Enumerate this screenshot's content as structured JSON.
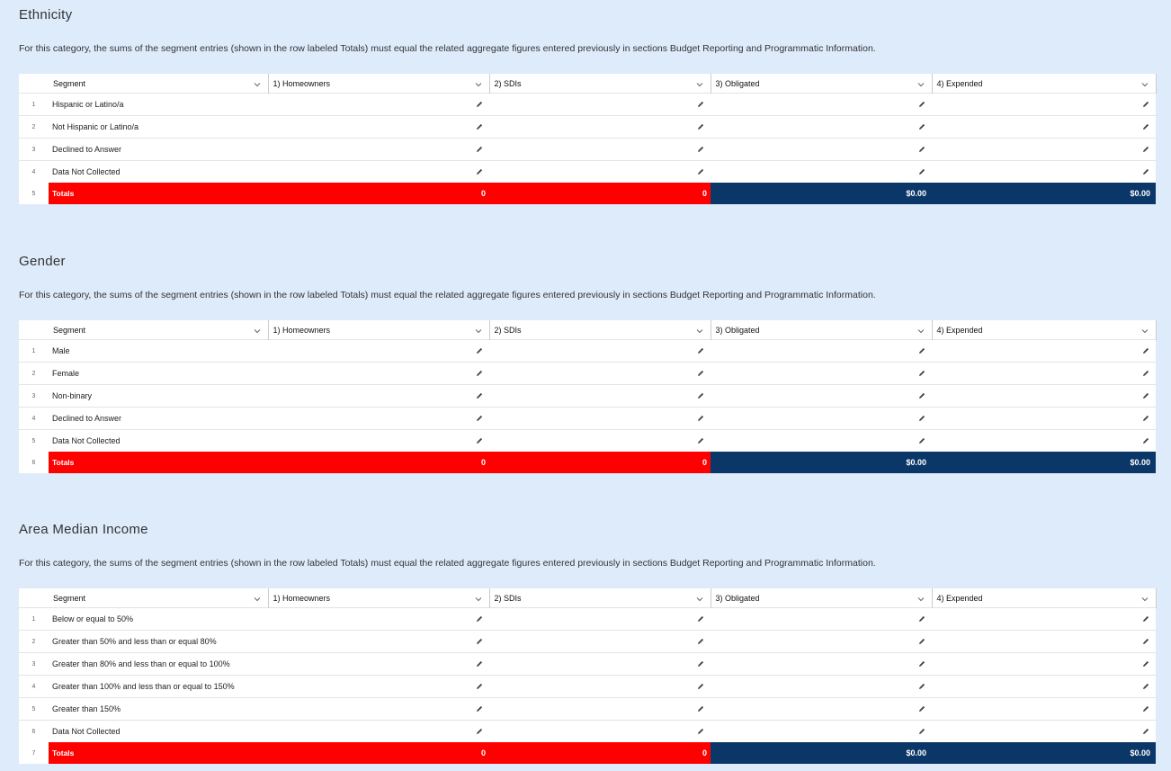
{
  "sections": [
    {
      "title": "Ethnicity",
      "description": "For this category, the sums of the segment entries (shown in the row labeled Totals) must equal the related aggregate figures entered previously in sections Budget Reporting and Programmatic Information.",
      "columns": [
        "Segment",
        "1) Homeowners",
        "2) SDIs",
        "3) Obligated",
        "4) Expended"
      ],
      "rows": [
        {
          "number": "1",
          "segment": "Hispanic or Latino/a"
        },
        {
          "number": "2",
          "segment": "Not Hispanic or Latino/a"
        },
        {
          "number": "3",
          "segment": "Declined to Answer"
        },
        {
          "number": "4",
          "segment": "Data Not Collected"
        }
      ],
      "totals": {
        "number": "5",
        "label": "Totals",
        "values": [
          "0",
          "0",
          "$0.00",
          "$0.00"
        ]
      }
    },
    {
      "title": "Gender",
      "description": "For this category, the sums of the segment entries (shown in the row labeled Totals) must equal the related aggregate figures entered previously in sections Budget Reporting and Programmatic Information.",
      "columns": [
        "Segment",
        "1) Homeowners",
        "2) SDIs",
        "3) Obligated",
        "4) Expended"
      ],
      "rows": [
        {
          "number": "1",
          "segment": "Male"
        },
        {
          "number": "2",
          "segment": "Female"
        },
        {
          "number": "3",
          "segment": "Non-binary"
        },
        {
          "number": "4",
          "segment": "Declined to Answer"
        },
        {
          "number": "5",
          "segment": "Data Not Collected"
        }
      ],
      "totals": {
        "number": "6",
        "label": "Totals",
        "values": [
          "0",
          "0",
          "$0.00",
          "$0.00"
        ]
      }
    },
    {
      "title": "Area Median Income",
      "description": "For this category, the sums of the segment entries (shown in the row labeled Totals) must equal the related aggregate figures entered previously in sections Budget Reporting and Programmatic Information.",
      "columns": [
        "Segment",
        "1) Homeowners",
        "2) SDIs",
        "3) Obligated",
        "4) Expended"
      ],
      "rows": [
        {
          "number": "1",
          "segment": "Below or equal to 50%"
        },
        {
          "number": "2",
          "segment": "Greater than 50% and less than or equal 80%"
        },
        {
          "number": "3",
          "segment": "Greater than 80% and less than or equal to 100%"
        },
        {
          "number": "4",
          "segment": "Greater than 100% and less than or equal to 150%"
        },
        {
          "number": "5",
          "segment": "Greater than 150%"
        },
        {
          "number": "6",
          "segment": "Data Not Collected"
        }
      ],
      "totals": {
        "number": "7",
        "label": "Totals",
        "values": [
          "0",
          "0",
          "$0.00",
          "$0.00"
        ]
      }
    }
  ]
}
